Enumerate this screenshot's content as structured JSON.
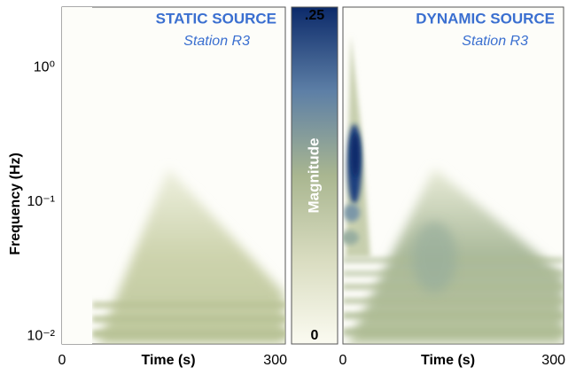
{
  "chart_data": [
    {
      "type": "heatmap",
      "title": "STATIC SOURCE",
      "subtitle": "Station R3",
      "xlabel": "Time (s)",
      "xlim": [
        0,
        300
      ],
      "xticks": [
        0,
        300
      ],
      "ylabel": "Frequency (Hz)",
      "yscale": "log",
      "ylim": [
        0.0085,
        2.75
      ],
      "yticks": [
        {
          "value": 1,
          "label": "10⁰"
        },
        {
          "value": 0.1,
          "label": "10⁻¹"
        },
        {
          "value": 0.01,
          "label": "10⁻²"
        }
      ]
    },
    {
      "type": "heatmap",
      "title": "DYNAMIC SOURCE",
      "subtitle": "Station R3",
      "xlabel": "Time (s)",
      "xlim": [
        0,
        300
      ],
      "xticks": [
        0,
        300
      ],
      "yscale": "log",
      "ylim": [
        0.0085,
        2.75
      ]
    }
  ],
  "colorbar": {
    "label": "Magnitude",
    "lim": [
      0,
      0.25
    ],
    "ticks": [
      0,
      {
        "value": 0.25,
        "label": ".25"
      }
    ],
    "colors": [
      "#fbfbf1",
      "#d9dcc0",
      "#a9b690",
      "#5d7fa6",
      "#0c2a6a"
    ]
  }
}
